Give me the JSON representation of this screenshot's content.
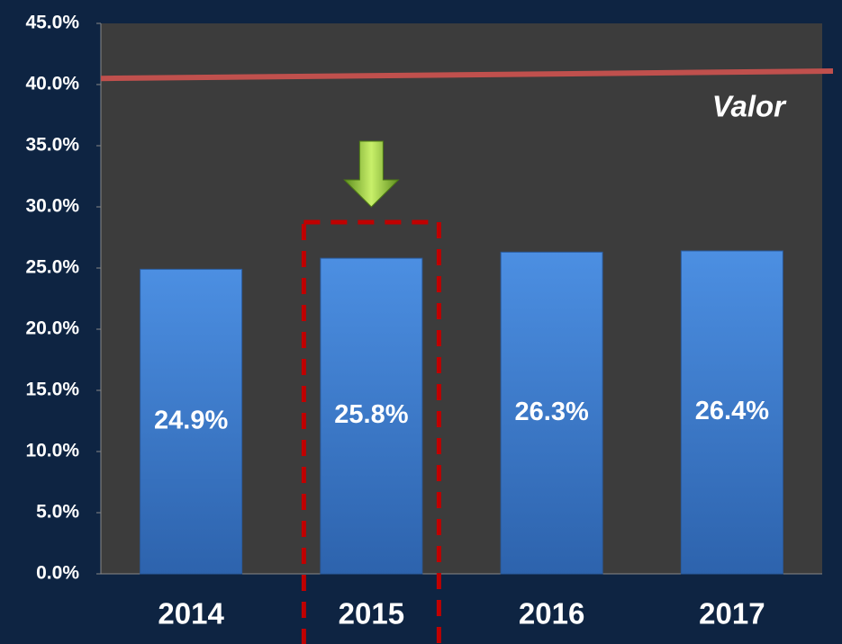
{
  "chart_data": {
    "type": "bar",
    "categories": [
      "2014",
      "2015",
      "2016",
      "2017"
    ],
    "values": [
      24.9,
      25.8,
      26.3,
      26.4
    ],
    "value_labels": [
      "24.9%",
      "25.8%",
      "26.3%",
      "26.4%"
    ],
    "color": "#3f7fd3",
    "ylim": [
      0,
      45
    ],
    "yticks": [
      {
        "value": 0,
        "label": "0.0%"
      },
      {
        "value": 5,
        "label": "5.0%"
      },
      {
        "value": 10,
        "label": "10.0%"
      },
      {
        "value": 15,
        "label": "15.0%"
      },
      {
        "value": 20,
        "label": "20.0%"
      },
      {
        "value": 25,
        "label": "25.0%"
      },
      {
        "value": 30,
        "label": "30.0%"
      },
      {
        "value": 35,
        "label": "35.0%"
      },
      {
        "value": 40,
        "label": "40.0%"
      },
      {
        "value": 45,
        "label": "45.0%"
      }
    ],
    "reference_line": {
      "name": "Valor",
      "values": [
        40.5,
        41.1
      ],
      "color": "#c0504d"
    }
  }
}
